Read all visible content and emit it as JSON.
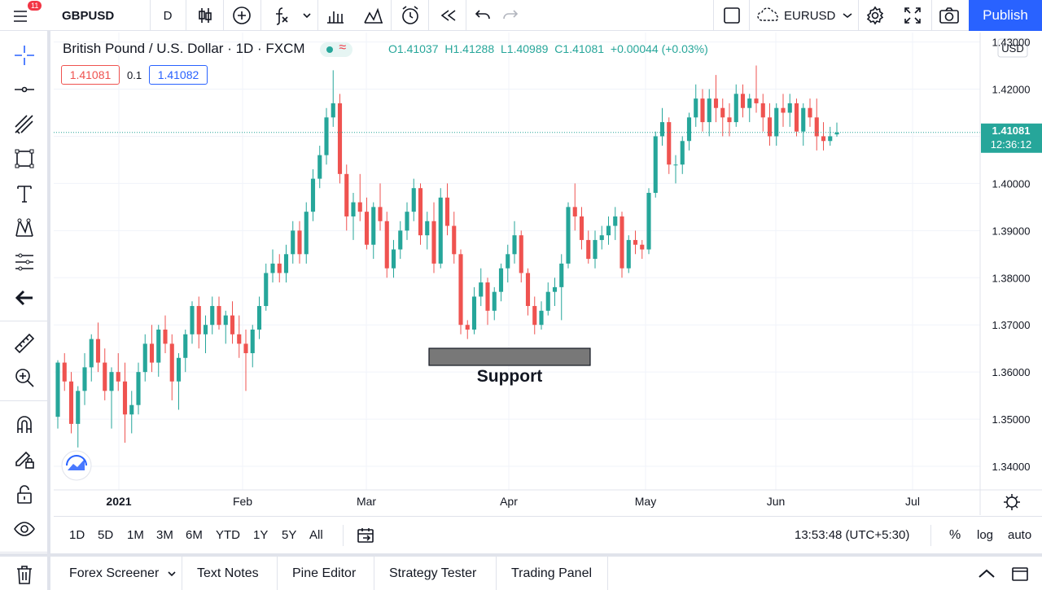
{
  "topbar": {
    "menu_badge": "11",
    "symbol": "GBPUSD",
    "interval": "D",
    "compare_symbol": "EURUSD",
    "publish_label": "Publish"
  },
  "legend": {
    "title": "British Pound / U.S. Dollar · 1D · FXCM",
    "open": "O1.41037",
    "high": "H1.41288",
    "low": "L1.40989",
    "close": "C1.41081",
    "change": "+0.00044 (+0.03%)",
    "sell_price": "1.41081",
    "spread": "0.1",
    "buy_price": "1.41082"
  },
  "price_axis": {
    "currency": "USD",
    "ticks": [
      "1.43000",
      "1.42000",
      "1.41000",
      "1.40000",
      "1.39000",
      "1.38000",
      "1.37000",
      "1.36000",
      "1.35000",
      "1.34000"
    ],
    "last_price": "1.41081",
    "countdown": "12:36:12"
  },
  "time_axis": {
    "labels": [
      "2021",
      "Feb",
      "Mar",
      "Apr",
      "May",
      "Jun",
      "Jul"
    ]
  },
  "annotation": {
    "label": "Support"
  },
  "colors": {
    "up": "#26a69a",
    "down": "#ef5350",
    "accent": "#2962ff"
  },
  "bottombar": {
    "ranges": [
      "1D",
      "5D",
      "1M",
      "3M",
      "6M",
      "YTD",
      "1Y",
      "5Y",
      "All"
    ],
    "clock": "13:53:48 (UTC+5:30)",
    "percent_label": "%",
    "log_label": "log",
    "auto_label": "auto"
  },
  "panels": {
    "tabs": [
      "Forex Screener",
      "Text Notes",
      "Pine Editor",
      "Strategy Tester",
      "Trading Panel"
    ]
  },
  "chart_data": {
    "type": "candlestick",
    "ylim": [
      1.335,
      1.432
    ],
    "ohlc": [
      [
        1.3505,
        1.3625,
        1.348,
        1.362
      ],
      [
        1.362,
        1.364,
        1.356,
        1.358
      ],
      [
        1.358,
        1.36,
        1.347,
        1.349
      ],
      [
        1.349,
        1.357,
        1.344,
        1.356
      ],
      [
        1.356,
        1.364,
        1.353,
        1.361
      ],
      [
        1.361,
        1.368,
        1.358,
        1.367
      ],
      [
        1.367,
        1.3705,
        1.36,
        1.362
      ],
      [
        1.362,
        1.365,
        1.354,
        1.356
      ],
      [
        1.356,
        1.361,
        1.348,
        1.36
      ],
      [
        1.36,
        1.364,
        1.356,
        1.358
      ],
      [
        1.358,
        1.362,
        1.345,
        1.351
      ],
      [
        1.351,
        1.356,
        1.347,
        1.353
      ],
      [
        1.353,
        1.362,
        1.351,
        1.36
      ],
      [
        1.36,
        1.368,
        1.358,
        1.366
      ],
      [
        1.366,
        1.37,
        1.36,
        1.362
      ],
      [
        1.362,
        1.37,
        1.359,
        1.369
      ],
      [
        1.369,
        1.372,
        1.364,
        1.366
      ],
      [
        1.366,
        1.368,
        1.354,
        1.358
      ],
      [
        1.358,
        1.364,
        1.352,
        1.363
      ],
      [
        1.363,
        1.369,
        1.36,
        1.368
      ],
      [
        1.368,
        1.375,
        1.366,
        1.374
      ],
      [
        1.374,
        1.376,
        1.365,
        1.368
      ],
      [
        1.368,
        1.372,
        1.364,
        1.37
      ],
      [
        1.37,
        1.376,
        1.368,
        1.374
      ],
      [
        1.374,
        1.376,
        1.369,
        1.37
      ],
      [
        1.37,
        1.373,
        1.366,
        1.372
      ],
      [
        1.372,
        1.375,
        1.366,
        1.368
      ],
      [
        1.368,
        1.372,
        1.363,
        1.366
      ],
      [
        1.366,
        1.369,
        1.356,
        1.364
      ],
      [
        1.364,
        1.37,
        1.361,
        1.369
      ],
      [
        1.369,
        1.376,
        1.367,
        1.374
      ],
      [
        1.374,
        1.383,
        1.373,
        1.381
      ],
      [
        1.381,
        1.386,
        1.379,
        1.383
      ],
      [
        1.383,
        1.385,
        1.379,
        1.381
      ],
      [
        1.381,
        1.387,
        1.379,
        1.385
      ],
      [
        1.385,
        1.392,
        1.383,
        1.39
      ],
      [
        1.39,
        1.392,
        1.383,
        1.385
      ],
      [
        1.385,
        1.396,
        1.383,
        1.394
      ],
      [
        1.394,
        1.403,
        1.392,
        1.401
      ],
      [
        1.401,
        1.408,
        1.399,
        1.406
      ],
      [
        1.406,
        1.416,
        1.404,
        1.414
      ],
      [
        1.414,
        1.424,
        1.412,
        1.417
      ],
      [
        1.417,
        1.419,
        1.4,
        1.402
      ],
      [
        1.402,
        1.404,
        1.39,
        1.393
      ],
      [
        1.393,
        1.398,
        1.388,
        1.396
      ],
      [
        1.396,
        1.402,
        1.392,
        1.394
      ],
      [
        1.394,
        1.397,
        1.386,
        1.387
      ],
      [
        1.387,
        1.396,
        1.384,
        1.395
      ],
      [
        1.395,
        1.4,
        1.39,
        1.392
      ],
      [
        1.392,
        1.394,
        1.38,
        1.382
      ],
      [
        1.382,
        1.388,
        1.38,
        1.386
      ],
      [
        1.386,
        1.392,
        1.384,
        1.39
      ],
      [
        1.39,
        1.396,
        1.388,
        1.394
      ],
      [
        1.394,
        1.401,
        1.392,
        1.399
      ],
      [
        1.399,
        1.4,
        1.387,
        1.389
      ],
      [
        1.389,
        1.394,
        1.386,
        1.392
      ],
      [
        1.392,
        1.396,
        1.381,
        1.383
      ],
      [
        1.383,
        1.399,
        1.382,
        1.397
      ],
      [
        1.397,
        1.4,
        1.389,
        1.391
      ],
      [
        1.391,
        1.394,
        1.383,
        1.385
      ],
      [
        1.385,
        1.386,
        1.368,
        1.37
      ],
      [
        1.37,
        1.371,
        1.367,
        1.369
      ],
      [
        1.369,
        1.378,
        1.368,
        1.376
      ],
      [
        1.376,
        1.382,
        1.374,
        1.379
      ],
      [
        1.379,
        1.38,
        1.37,
        1.373
      ],
      [
        1.373,
        1.378,
        1.371,
        1.377
      ],
      [
        1.377,
        1.383,
        1.375,
        1.382
      ],
      [
        1.382,
        1.387,
        1.379,
        1.385
      ],
      [
        1.385,
        1.392,
        1.383,
        1.389
      ],
      [
        1.389,
        1.39,
        1.379,
        1.381
      ],
      [
        1.381,
        1.382,
        1.372,
        1.374
      ],
      [
        1.374,
        1.376,
        1.368,
        1.37
      ],
      [
        1.37,
        1.375,
        1.369,
        1.373
      ],
      [
        1.373,
        1.379,
        1.372,
        1.377
      ],
      [
        1.377,
        1.38,
        1.374,
        1.378
      ],
      [
        1.378,
        1.385,
        1.371,
        1.383
      ],
      [
        1.383,
        1.396,
        1.382,
        1.395
      ],
      [
        1.395,
        1.4,
        1.39,
        1.393
      ],
      [
        1.393,
        1.395,
        1.386,
        1.388
      ],
      [
        1.388,
        1.39,
        1.383,
        1.384
      ],
      [
        1.384,
        1.39,
        1.382,
        1.388
      ],
      [
        1.388,
        1.391,
        1.386,
        1.389
      ],
      [
        1.389,
        1.393,
        1.387,
        1.391
      ],
      [
        1.391,
        1.395,
        1.388,
        1.393
      ],
      [
        1.393,
        1.394,
        1.38,
        1.382
      ],
      [
        1.382,
        1.389,
        1.381,
        1.388
      ],
      [
        1.388,
        1.39,
        1.385,
        1.387
      ],
      [
        1.387,
        1.388,
        1.384,
        1.386
      ],
      [
        1.386,
        1.399,
        1.385,
        1.398
      ],
      [
        1.398,
        1.411,
        1.397,
        1.41
      ],
      [
        1.41,
        1.416,
        1.408,
        1.413
      ],
      [
        1.413,
        1.414,
        1.402,
        1.404
      ],
      [
        1.404,
        1.406,
        1.4,
        1.404
      ],
      [
        1.404,
        1.41,
        1.402,
        1.409
      ],
      [
        1.409,
        1.415,
        1.407,
        1.414
      ],
      [
        1.414,
        1.421,
        1.412,
        1.418
      ],
      [
        1.418,
        1.42,
        1.411,
        1.413
      ],
      [
        1.413,
        1.42,
        1.41,
        1.418
      ],
      [
        1.418,
        1.423,
        1.413,
        1.416
      ],
      [
        1.416,
        1.418,
        1.41,
        1.414
      ],
      [
        1.414,
        1.417,
        1.41,
        1.413
      ],
      [
        1.413,
        1.421,
        1.412,
        1.419
      ],
      [
        1.419,
        1.421,
        1.414,
        1.416
      ],
      [
        1.416,
        1.419,
        1.413,
        1.418
      ],
      [
        1.418,
        1.425,
        1.415,
        1.417
      ],
      [
        1.417,
        1.419,
        1.411,
        1.414
      ],
      [
        1.414,
        1.417,
        1.408,
        1.41
      ],
      [
        1.41,
        1.417,
        1.408,
        1.416
      ],
      [
        1.416,
        1.419,
        1.412,
        1.415
      ],
      [
        1.415,
        1.419,
        1.412,
        1.417
      ],
      [
        1.417,
        1.418,
        1.41,
        1.411
      ],
      [
        1.411,
        1.417,
        1.408,
        1.416
      ],
      [
        1.416,
        1.418,
        1.412,
        1.414
      ],
      [
        1.414,
        1.418,
        1.407,
        1.41
      ],
      [
        1.41,
        1.413,
        1.407,
        1.409
      ],
      [
        1.409,
        1.412,
        1.408,
        1.41
      ],
      [
        1.4104,
        1.4129,
        1.4099,
        1.4108
      ]
    ]
  }
}
